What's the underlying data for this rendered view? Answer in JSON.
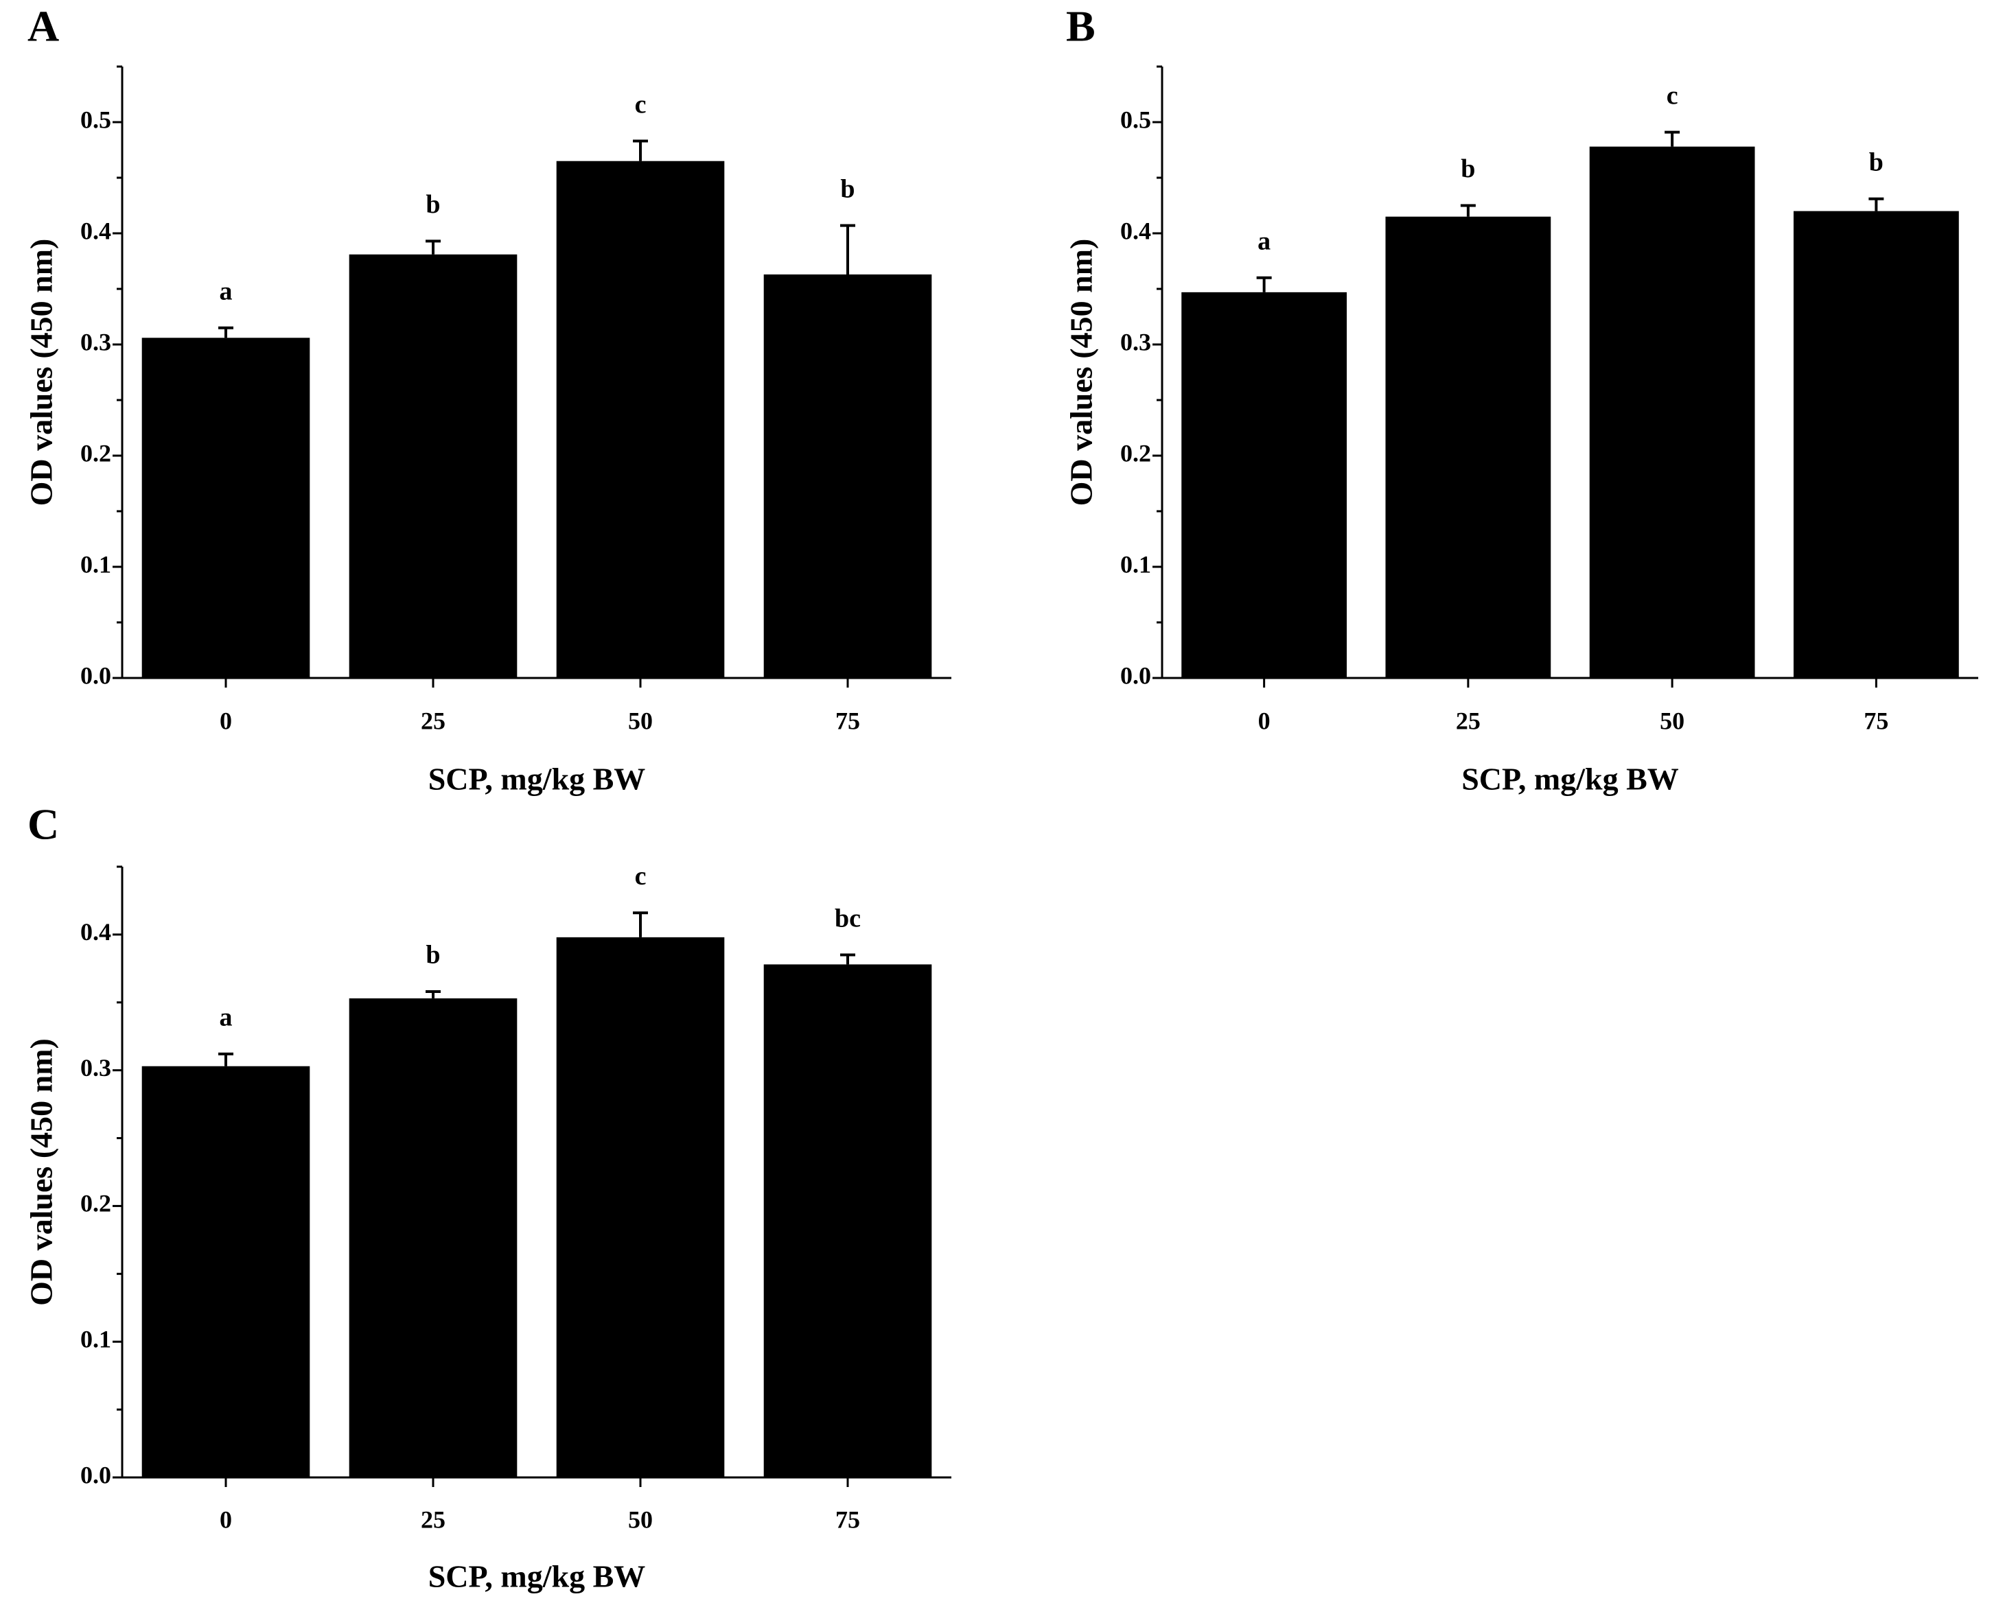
{
  "figure": {
    "background": "#ffffff",
    "bar_color": "#000000"
  },
  "chart_data": [
    {
      "panel": "A",
      "type": "bar",
      "categories": [
        "0",
        "25",
        "50",
        "75"
      ],
      "values": [
        0.306,
        0.381,
        0.465,
        0.363
      ],
      "errors": [
        0.009,
        0.012,
        0.018,
        0.044
      ],
      "labels": [
        "a",
        "b",
        "c",
        "b"
      ],
      "xlabel": "SCP, mg/kg BW",
      "ylabel": "OD values (450 nm)",
      "ylim": [
        0,
        0.55
      ],
      "yticks": [
        "0.0",
        "0.1",
        "0.2",
        "0.3",
        "0.4",
        "0.5"
      ]
    },
    {
      "panel": "B",
      "type": "bar",
      "categories": [
        "0",
        "25",
        "50",
        "75"
      ],
      "values": [
        0.347,
        0.415,
        0.478,
        0.42
      ],
      "errors": [
        0.013,
        0.01,
        0.013,
        0.011
      ],
      "labels": [
        "a",
        "b",
        "c",
        "b"
      ],
      "xlabel": "SCP, mg/kg BW",
      "ylabel": "OD values (450 nm)",
      "ylim": [
        0,
        0.55
      ],
      "yticks": [
        "0.0",
        "0.1",
        "0.2",
        "0.3",
        "0.4",
        "0.5"
      ]
    },
    {
      "panel": "C",
      "type": "bar",
      "categories": [
        "0",
        "25",
        "50",
        "75"
      ],
      "values": [
        0.303,
        0.353,
        0.398,
        0.378
      ],
      "errors": [
        0.009,
        0.005,
        0.018,
        0.007
      ],
      "labels": [
        "a",
        "b",
        "c",
        "bc"
      ],
      "xlabel": "SCP, mg/kg BW",
      "ylabel": "OD values (450 nm)",
      "ylim": [
        0,
        0.45
      ],
      "yticks": [
        "0.0",
        "0.1",
        "0.2",
        "0.3",
        "0.4"
      ]
    }
  ]
}
